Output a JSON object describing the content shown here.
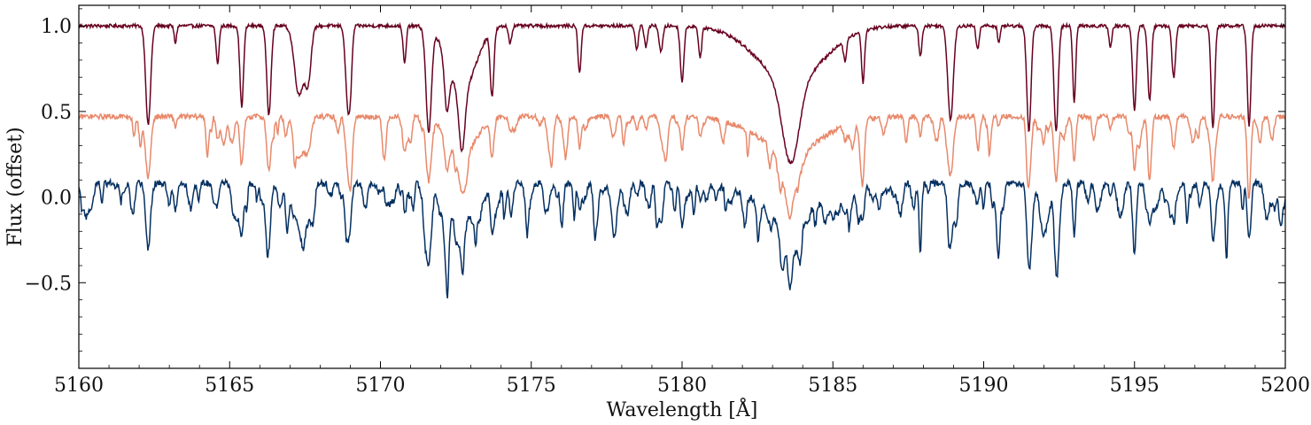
{
  "chart_data": {
    "type": "line",
    "title": "",
    "xlabel": "Wavelength [Å]",
    "ylabel": "Flux (offset)",
    "xlim": [
      5160,
      5200
    ],
    "ylim": [
      -1.0,
      1.12
    ],
    "grid": false,
    "legend": "none",
    "x_ticks": [
      5160,
      5165,
      5170,
      5175,
      5180,
      5185,
      5190,
      5195,
      5200
    ],
    "x_tick_labels": [
      "5160",
      "5165",
      "5170",
      "5175",
      "5180",
      "5185",
      "5190",
      "5195",
      "5200"
    ],
    "y_ticks": [
      -0.5,
      0.0,
      0.5,
      1.0
    ],
    "y_tick_labels": [
      "−0.5",
      "0.0",
      "0.5",
      "1.0"
    ],
    "series": [
      {
        "color": "#67001f",
        "continuum": 1.0,
        "noise": 0.01,
        "depth_scale": 1.0,
        "lines": [
          [
            5162.3,
            0.58,
            0.08
          ],
          [
            5164.6,
            0.22,
            0.05
          ],
          [
            5165.4,
            0.47,
            0.06
          ],
          [
            5166.3,
            0.52,
            0.07
          ],
          [
            5167.3,
            0.4,
            0.15
          ],
          [
            5167.6,
            0.3,
            0.1
          ],
          [
            5168.9,
            0.38,
            0.07
          ],
          [
            5169.0,
            0.32,
            0.06
          ],
          [
            5170.8,
            0.22,
            0.05
          ],
          [
            5171.6,
            0.6,
            0.09
          ],
          [
            5172.2,
            0.3,
            0.08
          ],
          [
            5172.7,
            0.35,
            0.1
          ],
          [
            5172.7,
            0.38,
            0.45
          ],
          [
            5173.7,
            0.38,
            0.06
          ],
          [
            5176.6,
            0.28,
            0.05
          ],
          [
            5178.5,
            0.14,
            0.05
          ],
          [
            5178.8,
            0.12,
            0.05
          ],
          [
            5179.3,
            0.15,
            0.06
          ],
          [
            5180.0,
            0.32,
            0.06
          ],
          [
            5180.6,
            0.18,
            0.05
          ],
          [
            5183.6,
            0.48,
            0.28
          ],
          [
            5183.6,
            0.32,
            1.1
          ],
          [
            5186.0,
            0.3,
            0.05
          ],
          [
            5187.9,
            0.18,
            0.05
          ],
          [
            5188.9,
            0.55,
            0.09
          ],
          [
            5189.8,
            0.14,
            0.05
          ],
          [
            5191.5,
            0.62,
            0.07
          ],
          [
            5192.4,
            0.62,
            0.07
          ],
          [
            5193.0,
            0.44,
            0.05
          ],
          [
            5195.0,
            0.5,
            0.06
          ],
          [
            5195.5,
            0.44,
            0.06
          ],
          [
            5196.3,
            0.3,
            0.06
          ],
          [
            5197.6,
            0.6,
            0.06
          ],
          [
            5198.8,
            0.58,
            0.06
          ],
          [
            5163.2,
            0.1,
            0.04
          ],
          [
            5174.3,
            0.1,
            0.05
          ],
          [
            5185.4,
            0.12,
            0.05
          ],
          [
            5190.5,
            0.1,
            0.04
          ],
          [
            5194.2,
            0.12,
            0.05
          ]
        ]
      },
      {
        "color": "#e8896b",
        "continuum": 0.47,
        "noise": 0.015,
        "depth_scale": 1.45,
        "extra_density": 2.0,
        "lines": [
          [
            5162.3,
            0.58,
            0.08
          ],
          [
            5164.6,
            0.22,
            0.05
          ],
          [
            5165.4,
            0.47,
            0.06
          ],
          [
            5166.3,
            0.52,
            0.07
          ],
          [
            5167.3,
            0.4,
            0.15
          ],
          [
            5167.6,
            0.3,
            0.1
          ],
          [
            5168.9,
            0.38,
            0.07
          ],
          [
            5169.0,
            0.32,
            0.06
          ],
          [
            5170.8,
            0.22,
            0.05
          ],
          [
            5171.6,
            0.6,
            0.09
          ],
          [
            5172.2,
            0.3,
            0.08
          ],
          [
            5172.7,
            0.35,
            0.1
          ],
          [
            5172.7,
            0.38,
            0.45
          ],
          [
            5173.7,
            0.38,
            0.06
          ],
          [
            5176.6,
            0.28,
            0.05
          ],
          [
            5178.5,
            0.14,
            0.05
          ],
          [
            5178.8,
            0.12,
            0.05
          ],
          [
            5179.3,
            0.15,
            0.06
          ],
          [
            5180.0,
            0.32,
            0.06
          ],
          [
            5180.6,
            0.18,
            0.05
          ],
          [
            5183.6,
            0.48,
            0.28
          ],
          [
            5183.6,
            0.32,
            1.1
          ],
          [
            5186.0,
            0.3,
            0.05
          ],
          [
            5187.9,
            0.18,
            0.05
          ],
          [
            5188.9,
            0.55,
            0.09
          ],
          [
            5189.8,
            0.14,
            0.05
          ],
          [
            5191.5,
            0.62,
            0.07
          ],
          [
            5192.4,
            0.62,
            0.07
          ],
          [
            5193.0,
            0.44,
            0.05
          ],
          [
            5195.0,
            0.5,
            0.06
          ],
          [
            5195.5,
            0.44,
            0.06
          ],
          [
            5196.3,
            0.3,
            0.06
          ],
          [
            5197.6,
            0.6,
            0.06
          ],
          [
            5198.8,
            0.58,
            0.06
          ],
          [
            5163.2,
            0.1,
            0.04
          ],
          [
            5174.3,
            0.1,
            0.05
          ],
          [
            5185.4,
            0.12,
            0.05
          ],
          [
            5190.5,
            0.1,
            0.04
          ],
          [
            5194.2,
            0.12,
            0.05
          ]
        ]
      },
      {
        "color": "#053061",
        "continuum": 0.08,
        "noise": 0.02,
        "depth_scale": 1.3,
        "extra_density": 6.0,
        "lines": [
          [
            5162.3,
            0.58,
            0.08
          ],
          [
            5164.6,
            0.22,
            0.05
          ],
          [
            5165.4,
            0.47,
            0.06
          ],
          [
            5166.3,
            0.52,
            0.07
          ],
          [
            5167.3,
            0.4,
            0.15
          ],
          [
            5167.6,
            0.3,
            0.1
          ],
          [
            5168.9,
            0.38,
            0.07
          ],
          [
            5169.0,
            0.32,
            0.06
          ],
          [
            5170.8,
            0.22,
            0.05
          ],
          [
            5171.6,
            0.6,
            0.09
          ],
          [
            5172.2,
            0.3,
            0.08
          ],
          [
            5172.7,
            0.35,
            0.1
          ],
          [
            5172.7,
            0.38,
            0.45
          ],
          [
            5173.7,
            0.38,
            0.06
          ],
          [
            5176.6,
            0.28,
            0.05
          ],
          [
            5178.5,
            0.14,
            0.05
          ],
          [
            5178.8,
            0.12,
            0.05
          ],
          [
            5179.3,
            0.15,
            0.06
          ],
          [
            5180.0,
            0.32,
            0.06
          ],
          [
            5180.6,
            0.18,
            0.05
          ],
          [
            5183.6,
            0.48,
            0.28
          ],
          [
            5183.6,
            0.32,
            1.1
          ],
          [
            5186.0,
            0.3,
            0.05
          ],
          [
            5187.9,
            0.18,
            0.05
          ],
          [
            5188.9,
            0.55,
            0.09
          ],
          [
            5189.8,
            0.14,
            0.05
          ],
          [
            5191.5,
            0.62,
            0.07
          ],
          [
            5192.4,
            0.62,
            0.07
          ],
          [
            5193.0,
            0.44,
            0.05
          ],
          [
            5195.0,
            0.5,
            0.06
          ],
          [
            5195.5,
            0.44,
            0.06
          ],
          [
            5196.3,
            0.3,
            0.06
          ],
          [
            5197.6,
            0.6,
            0.06
          ],
          [
            5198.8,
            0.58,
            0.06
          ],
          [
            5163.2,
            0.1,
            0.04
          ],
          [
            5174.3,
            0.1,
            0.05
          ],
          [
            5185.4,
            0.12,
            0.05
          ],
          [
            5190.5,
            0.1,
            0.04
          ],
          [
            5194.2,
            0.12,
            0.05
          ]
        ]
      }
    ]
  }
}
